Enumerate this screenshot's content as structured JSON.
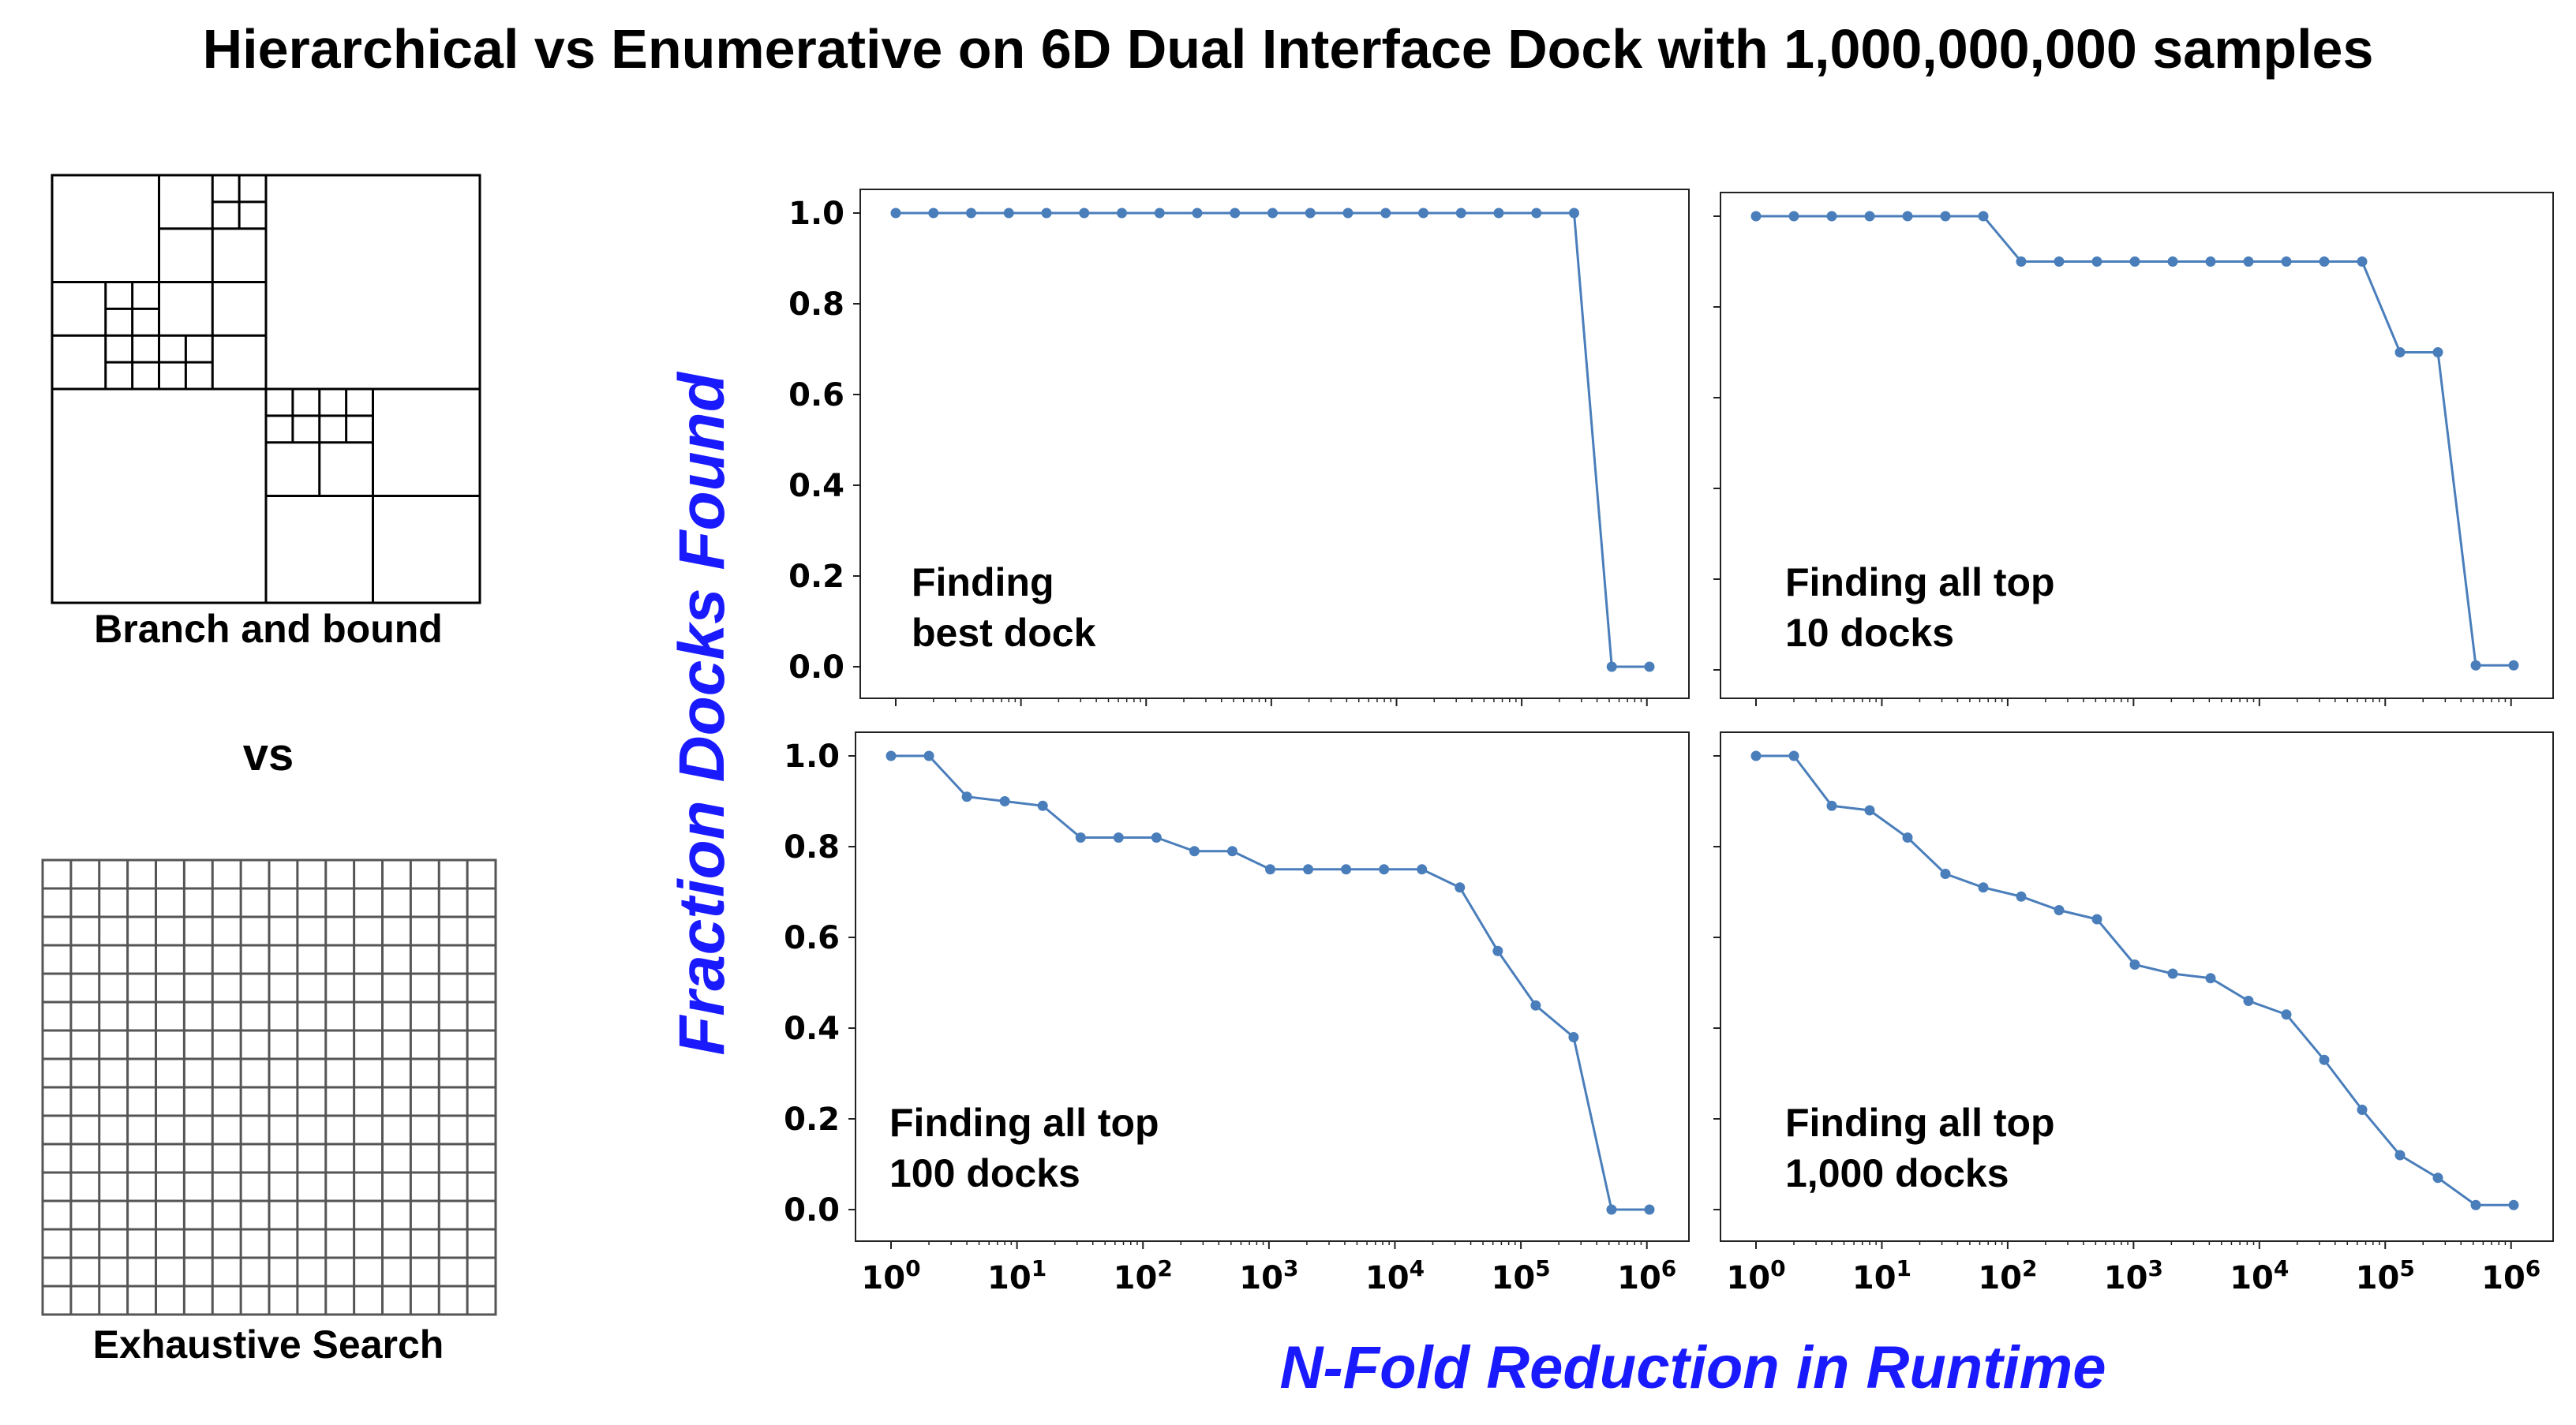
{
  "title": "Hierarchical vs Enumerative on 6D Dual Interface Dock with 1,000,000,000 samples",
  "diagram": {
    "branch_label": "Branch and bound",
    "vs_label": "vs",
    "exhaustive_label": "Exhaustive Search"
  },
  "axes": {
    "ylabel": "Fraction Docks Found",
    "xlabel": "N-Fold Reduction in Runtime",
    "y_ticks": [
      "0.0",
      "0.2",
      "0.4",
      "0.6",
      "0.8",
      "1.0"
    ],
    "x_ticks": [
      "0",
      "1",
      "2",
      "3",
      "4",
      "5",
      "6"
    ]
  },
  "colors": {
    "line": "#4a7ebb",
    "axis_label": "#1a1aff"
  },
  "chart_data": [
    {
      "type": "line",
      "annotation": [
        "Finding",
        "best dock"
      ],
      "x_scale": "log2",
      "ylim": [
        0,
        1
      ],
      "x_exponents_base2": [
        0,
        1,
        2,
        3,
        4,
        5,
        6,
        7,
        8,
        9,
        10,
        11,
        12,
        13,
        14,
        15,
        16,
        17,
        18,
        19,
        20
      ],
      "values": [
        1,
        1,
        1,
        1,
        1,
        1,
        1,
        1,
        1,
        1,
        1,
        1,
        1,
        1,
        1,
        1,
        1,
        1,
        1,
        0,
        0
      ]
    },
    {
      "type": "line",
      "annotation": [
        "Finding all top",
        "10 docks"
      ],
      "x_scale": "log2",
      "ylim": [
        0,
        1
      ],
      "x_exponents_base2": [
        0,
        1,
        2,
        3,
        4,
        5,
        6,
        7,
        8,
        9,
        10,
        11,
        12,
        13,
        14,
        15,
        16,
        17,
        18,
        19,
        20
      ],
      "values": [
        1,
        1,
        1,
        1,
        1,
        1,
        1,
        0.9,
        0.9,
        0.9,
        0.9,
        0.9,
        0.9,
        0.9,
        0.9,
        0.9,
        0.9,
        0.7,
        0.7,
        0.01,
        0.01
      ]
    },
    {
      "type": "line",
      "annotation": [
        "Finding all top",
        "100 docks"
      ],
      "x_scale": "log2",
      "ylim": [
        0,
        1
      ],
      "x_exponents_base2": [
        0,
        1,
        2,
        3,
        4,
        5,
        6,
        7,
        8,
        9,
        10,
        11,
        12,
        13,
        14,
        15,
        16,
        17,
        18,
        19,
        20
      ],
      "values": [
        1,
        1,
        0.91,
        0.9,
        0.89,
        0.82,
        0.82,
        0.82,
        0.79,
        0.79,
        0.75,
        0.75,
        0.75,
        0.75,
        0.75,
        0.71,
        0.57,
        0.45,
        0.38,
        0,
        0
      ]
    },
    {
      "type": "line",
      "annotation": [
        "Finding all top",
        "1,000 docks"
      ],
      "x_scale": "log2",
      "ylim": [
        0,
        1
      ],
      "x_exponents_base2": [
        0,
        1,
        2,
        3,
        4,
        5,
        6,
        7,
        8,
        9,
        10,
        11,
        12,
        13,
        14,
        15,
        16,
        17,
        18,
        19,
        20
      ],
      "values": [
        1,
        1,
        0.89,
        0.88,
        0.82,
        0.74,
        0.71,
        0.69,
        0.66,
        0.64,
        0.54,
        0.52,
        0.51,
        0.46,
        0.43,
        0.33,
        0.22,
        0.12,
        0.07,
        0.01,
        0.01
      ]
    }
  ]
}
